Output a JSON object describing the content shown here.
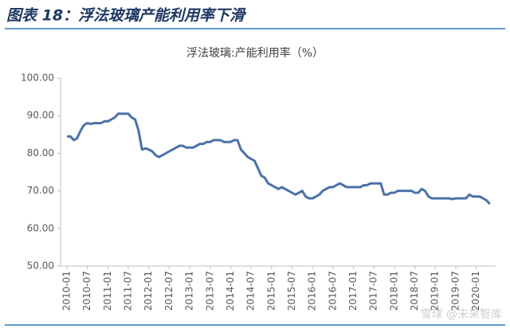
{
  "header": {
    "title": "图表 18：浮法玻璃产能利用率下滑"
  },
  "watermark": "雪球 @未来智库",
  "chart_data": {
    "type": "line",
    "title": "浮法玻璃:产能利用率（%）",
    "categories": [
      "2010-01",
      null,
      null,
      null,
      null,
      null,
      "2010-07",
      null,
      null,
      null,
      null,
      null,
      "2011-01",
      null,
      null,
      null,
      null,
      null,
      "2011-07",
      null,
      null,
      null,
      null,
      null,
      "2012-01",
      null,
      null,
      null,
      null,
      null,
      "2012-07",
      null,
      null,
      null,
      null,
      null,
      "2013-01",
      null,
      null,
      null,
      null,
      null,
      "2013-07",
      null,
      null,
      null,
      null,
      null,
      "2014-01",
      null,
      null,
      null,
      null,
      null,
      "2014-07",
      null,
      null,
      null,
      null,
      null,
      "2015-01",
      null,
      null,
      null,
      null,
      null,
      "2015-07",
      null,
      null,
      null,
      null,
      null,
      "2016-01",
      null,
      null,
      null,
      null,
      null,
      "2016-07",
      null,
      null,
      null,
      null,
      null,
      "2017-01",
      null,
      null,
      null,
      null,
      null,
      "2017-07",
      null,
      null,
      null,
      null,
      null,
      "2018-01",
      null,
      null,
      null,
      null,
      null,
      "2018-07",
      null,
      null,
      null,
      null,
      null,
      "2019-01",
      null,
      null,
      null,
      null,
      null,
      "2019-07",
      null,
      null,
      null,
      null,
      null,
      "2020-01",
      null,
      null,
      null,
      null
    ],
    "series": [
      {
        "name": "浮法玻璃:产能利用率",
        "color": "#4a72a8",
        "values": [
          84.5,
          84.5,
          83.5,
          84,
          86,
          87.5,
          88,
          87.8,
          88,
          88,
          88,
          88.5,
          88.5,
          89,
          89.5,
          90.5,
          90.5,
          90.5,
          90.5,
          89.5,
          89,
          86,
          81,
          81.3,
          81,
          80.5,
          79.5,
          79,
          79.5,
          80,
          80.5,
          81,
          81.5,
          82,
          82,
          81.5,
          81.5,
          81.5,
          82,
          82.5,
          82.5,
          83,
          83,
          83.5,
          83.5,
          83.5,
          83,
          83,
          83,
          83.5,
          83.5,
          81,
          80,
          79,
          78.5,
          78,
          76,
          74,
          73.5,
          72,
          71.5,
          71,
          70.5,
          71,
          70.5,
          70,
          69.5,
          69,
          69.5,
          70,
          68.5,
          68,
          68,
          68.5,
          69,
          70,
          70.5,
          71,
          71,
          71.5,
          72,
          71.5,
          71,
          71,
          71,
          71,
          71,
          71.5,
          71.5,
          72,
          72,
          72,
          72,
          69,
          69,
          69.5,
          69.5,
          70,
          70,
          70,
          70,
          70,
          69.5,
          69.5,
          70.5,
          70,
          68.5,
          68,
          68,
          68,
          68,
          68,
          68,
          67.8,
          68,
          68,
          68,
          68,
          69,
          68.5,
          68.5,
          68.5,
          68,
          67.5,
          66.5
        ]
      }
    ],
    "ylim": [
      50,
      100
    ],
    "yticks": [
      {
        "value": 50,
        "label": "50.00"
      },
      {
        "value": 60,
        "label": "60.00"
      },
      {
        "value": 70,
        "label": "70.00"
      },
      {
        "value": 80,
        "label": "80.00"
      },
      {
        "value": 90,
        "label": "90.00"
      },
      {
        "value": 100,
        "label": "100.00"
      }
    ]
  }
}
